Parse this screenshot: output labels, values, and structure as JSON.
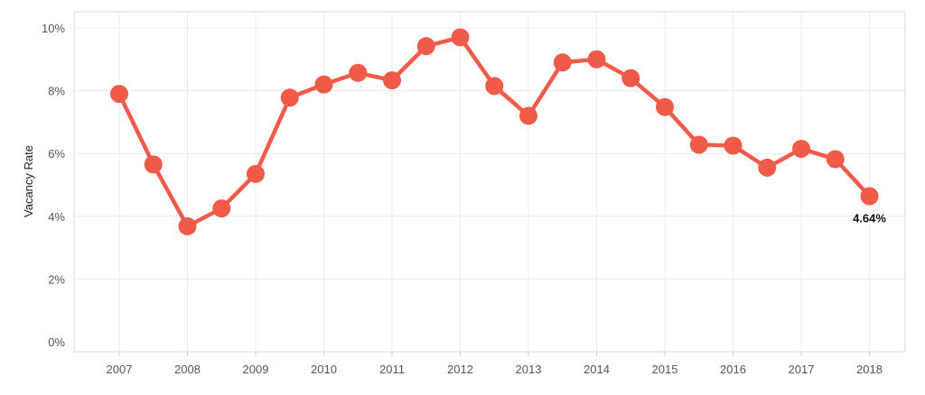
{
  "chart_data": {
    "type": "line",
    "title": "",
    "xlabel": "",
    "ylabel": "Vacancy Rate",
    "ylim": [
      0,
      10
    ],
    "y_ticks": [
      "0%",
      "2%",
      "4%",
      "6%",
      "8%",
      "10%"
    ],
    "x_ticks": [
      "2007",
      "2008",
      "2009",
      "2010",
      "2011",
      "2012",
      "2013",
      "2014",
      "2015",
      "2016",
      "2017",
      "2018"
    ],
    "grid": true,
    "color": "#f05a48",
    "series": [
      {
        "x": [
          2007,
          2007.5,
          2008,
          2008.5,
          2009,
          2009.5,
          2010,
          2010.5,
          2011,
          2011.5,
          2012,
          2012.5,
          2013,
          2013.5,
          2014,
          2014.5,
          2015,
          2015.5,
          2016,
          2016.5,
          2017,
          2017.5,
          2018
        ],
        "values": [
          7.9,
          5.65,
          3.68,
          4.25,
          5.35,
          7.78,
          8.2,
          8.57,
          8.33,
          9.42,
          9.7,
          8.15,
          7.2,
          8.9,
          9.0,
          8.4,
          7.48,
          6.28,
          6.25,
          5.55,
          6.15,
          5.82,
          4.64
        ]
      }
    ],
    "annotations": [
      {
        "text": "4.64%",
        "x": 2018,
        "y": 4.64
      }
    ]
  }
}
